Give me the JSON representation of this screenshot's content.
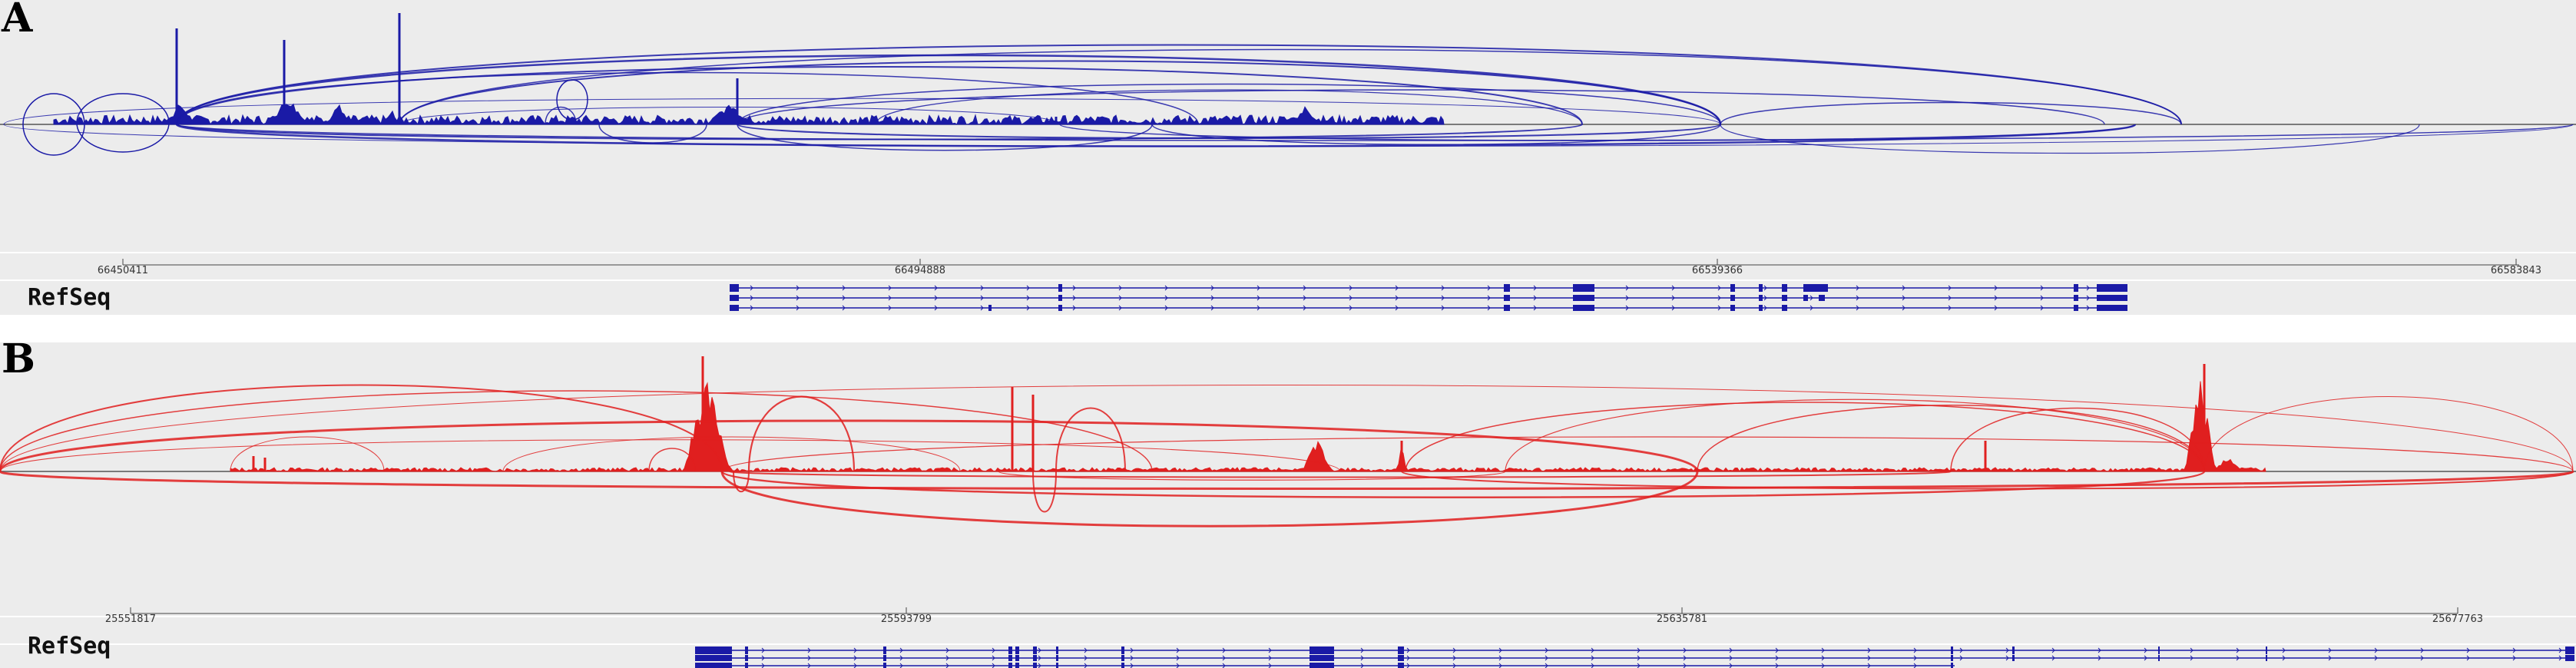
{
  "panels": {
    "a": {
      "label": "A",
      "ticks": [
        "66450411",
        "66494888",
        "66539366",
        "66583843"
      ],
      "track_name": "RefSeq",
      "coverage_color": "#1a1aa6",
      "transcript_color": "#1a1aa6"
    },
    "b": {
      "label": "B",
      "ticks": [
        "25551817",
        "25593799",
        "25635781",
        "25677763"
      ],
      "track_name": "RefSeq",
      "coverage_color": "#e01f1f",
      "transcript_color": "#1a1aa6"
    }
  },
  "colors": {
    "panel_background": "#ececec",
    "separator": "#ffffff"
  }
}
